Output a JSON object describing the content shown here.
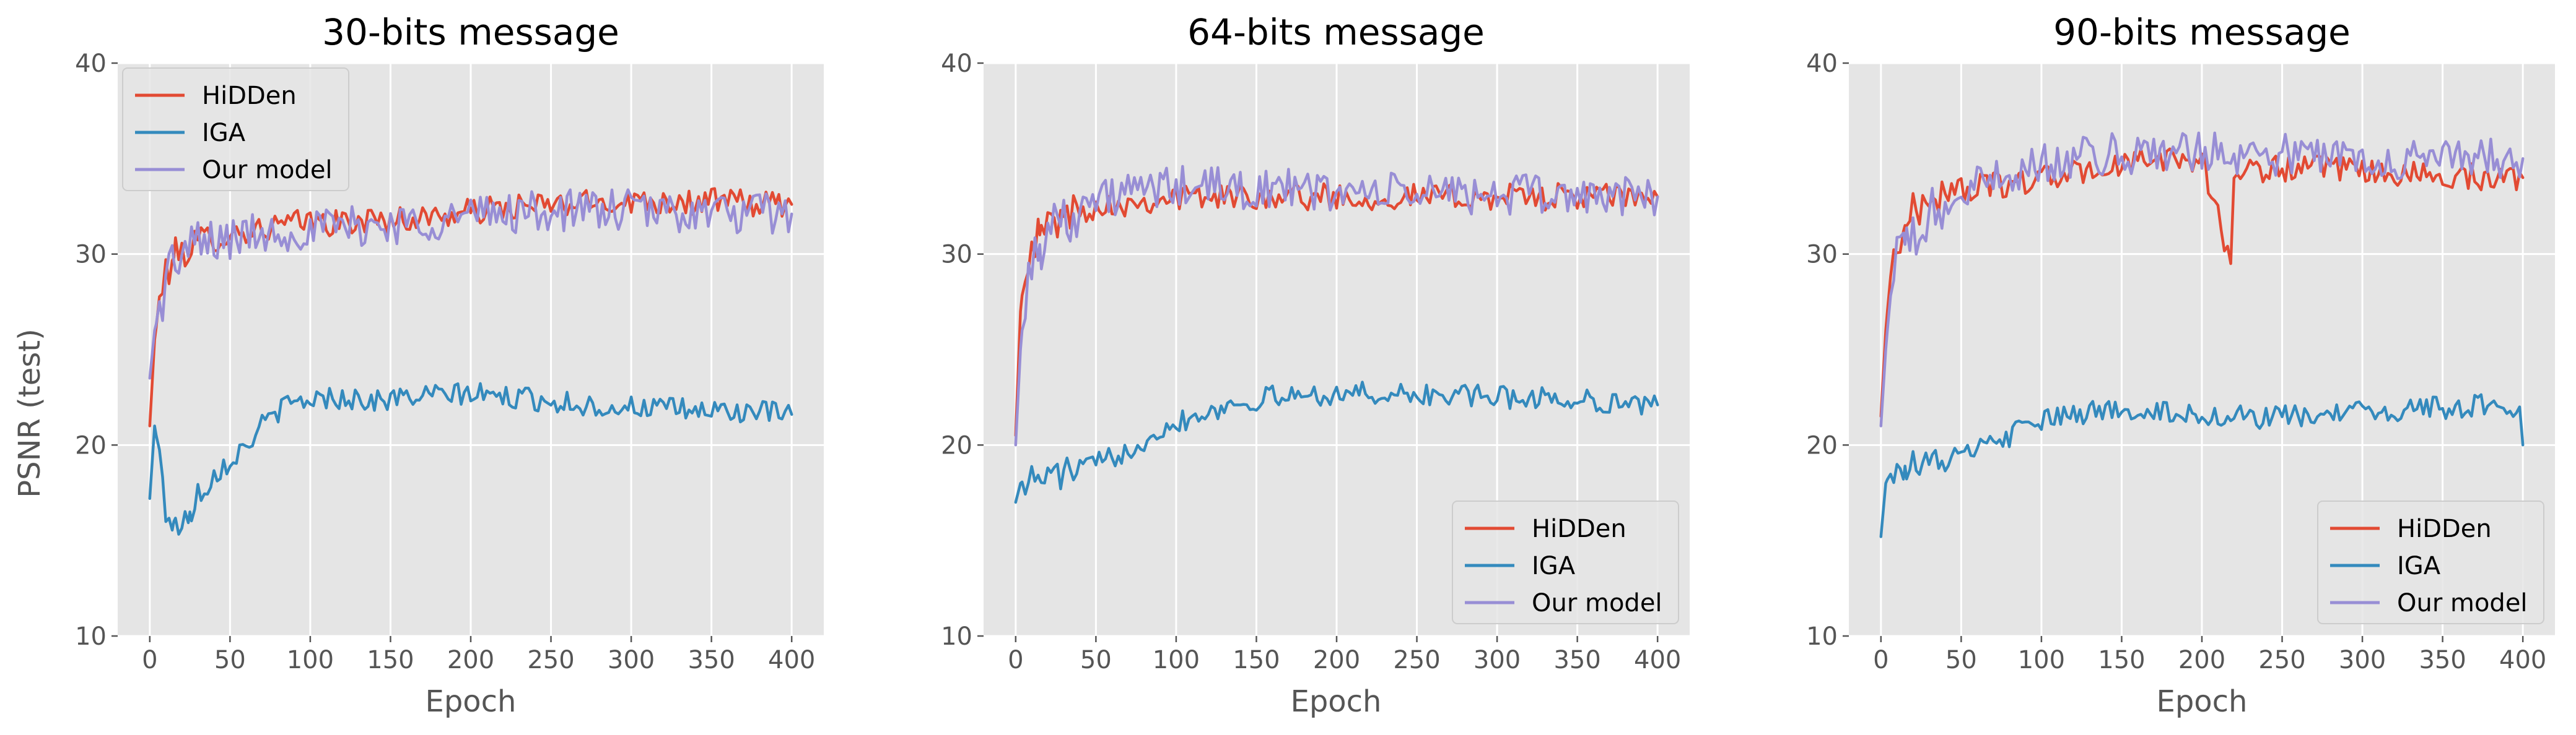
{
  "figure": {
    "ylabel": "PSNR (test)",
    "xlabel": "Epoch",
    "xticks": [
      0,
      50,
      100,
      150,
      200,
      250,
      300,
      350,
      400
    ],
    "yticks": [
      10,
      20,
      30,
      40
    ],
    "xlim": [
      -20,
      420
    ],
    "ylim": [
      10,
      40
    ],
    "grid": true,
    "style": "ggplot",
    "colors": {
      "HiDDen": "#E24A33",
      "IGA": "#348ABD",
      "Our model": "#988ED5"
    }
  },
  "chart_data": [
    {
      "type": "line",
      "title": "30-bits message",
      "xlabel": "Epoch",
      "ylabel": "PSNR (test)",
      "xlim": [
        0,
        400
      ],
      "ylim": [
        10,
        40
      ],
      "legend": "upper-left",
      "series": [
        {
          "name": "HiDDen",
          "color": "#E24A33",
          "x": [
            0,
            3,
            6,
            10,
            15,
            20,
            30,
            40,
            50,
            60,
            70,
            80,
            90,
            100,
            120,
            140,
            160,
            180,
            200,
            220,
            240,
            260,
            280,
            300,
            320,
            340,
            360,
            380,
            400
          ],
          "y": [
            21.0,
            25.5,
            27.5,
            29.0,
            29.8,
            30.2,
            30.5,
            30.8,
            31.0,
            31.2,
            31.3,
            31.5,
            31.6,
            31.7,
            31.6,
            31.8,
            31.8,
            32.0,
            32.2,
            32.4,
            32.5,
            32.6,
            32.7,
            32.8,
            32.8,
            32.7,
            32.8,
            32.6,
            32.6
          ]
        },
        {
          "name": "IGA",
          "color": "#348ABD",
          "x": [
            0,
            3,
            6,
            10,
            15,
            20,
            25,
            30,
            40,
            50,
            60,
            70,
            80,
            90,
            100,
            120,
            140,
            160,
            180,
            200,
            220,
            240,
            260,
            280,
            300,
            320,
            340,
            360,
            380,
            400
          ],
          "y": [
            17.2,
            21.0,
            19.5,
            16.5,
            16.0,
            15.5,
            16.5,
            17.5,
            18.5,
            19.2,
            20.0,
            21.0,
            21.8,
            22.2,
            22.4,
            22.5,
            22.3,
            22.5,
            22.6,
            22.7,
            22.5,
            22.4,
            22.2,
            22.0,
            22.0,
            21.9,
            21.8,
            21.8,
            21.7,
            21.6
          ]
        },
        {
          "name": "Our model",
          "color": "#988ED5",
          "x": [
            0,
            3,
            6,
            10,
            15,
            20,
            30,
            40,
            50,
            60,
            70,
            80,
            90,
            100,
            120,
            140,
            160,
            180,
            200,
            220,
            240,
            260,
            280,
            300,
            320,
            340,
            360,
            380,
            400
          ],
          "y": [
            23.5,
            26.0,
            27.0,
            28.8,
            29.6,
            30.0,
            30.4,
            30.6,
            30.8,
            31.0,
            31.1,
            31.2,
            31.2,
            31.3,
            31.4,
            31.5,
            31.6,
            31.8,
            32.0,
            32.2,
            32.2,
            32.3,
            32.3,
            32.3,
            32.2,
            32.2,
            32.1,
            32.1,
            32.1
          ]
        }
      ]
    },
    {
      "type": "line",
      "title": "64-bits message",
      "xlabel": "Epoch",
      "ylabel": "",
      "xlim": [
        0,
        400
      ],
      "ylim": [
        10,
        40
      ],
      "legend": "lower-right",
      "series": [
        {
          "name": "HiDDen",
          "color": "#E24A33",
          "x": [
            0,
            3,
            6,
            10,
            15,
            20,
            30,
            40,
            50,
            60,
            70,
            80,
            100,
            120,
            140,
            160,
            180,
            200,
            220,
            240,
            260,
            280,
            300,
            320,
            340,
            360,
            380,
            400
          ],
          "y": [
            20.5,
            27.0,
            29.5,
            30.5,
            31.0,
            31.5,
            32.0,
            32.3,
            32.5,
            32.6,
            32.7,
            32.8,
            33.0,
            33.0,
            33.0,
            33.1,
            33.0,
            33.0,
            32.9,
            33.0,
            33.0,
            33.0,
            33.0,
            33.0,
            33.0,
            33.0,
            33.0,
            33.0
          ]
        },
        {
          "name": "IGA",
          "color": "#348ABD",
          "x": [
            0,
            3,
            6,
            10,
            15,
            20,
            30,
            40,
            50,
            60,
            70,
            80,
            90,
            100,
            120,
            140,
            160,
            180,
            200,
            220,
            240,
            260,
            280,
            300,
            320,
            340,
            360,
            380,
            400
          ],
          "y": [
            17.0,
            18.0,
            18.2,
            18.2,
            18.2,
            18.4,
            18.5,
            18.8,
            19.0,
            19.3,
            19.8,
            20.3,
            20.8,
            21.2,
            21.8,
            22.2,
            22.5,
            22.6,
            22.7,
            22.7,
            22.6,
            22.6,
            22.6,
            22.5,
            22.5,
            22.4,
            22.3,
            22.2,
            22.1
          ]
        },
        {
          "name": "Our model",
          "color": "#988ED5",
          "x": [
            0,
            3,
            6,
            10,
            15,
            20,
            30,
            40,
            50,
            60,
            70,
            80,
            90,
            100,
            120,
            140,
            160,
            180,
            200,
            220,
            240,
            260,
            280,
            300,
            320,
            340,
            360,
            380,
            400
          ],
          "y": [
            20.0,
            25.0,
            28.0,
            29.5,
            30.5,
            31.2,
            32.0,
            32.5,
            32.8,
            33.0,
            33.2,
            33.3,
            33.4,
            33.5,
            33.5,
            33.4,
            33.4,
            33.3,
            33.3,
            33.2,
            33.2,
            33.2,
            33.2,
            33.1,
            33.1,
            33.1,
            33.1,
            33.0,
            33.0
          ]
        }
      ]
    },
    {
      "type": "line",
      "title": "90-bits message",
      "xlabel": "Epoch",
      "ylabel": "",
      "xlim": [
        0,
        400
      ],
      "ylim": [
        10,
        40
      ],
      "legend": "lower-right",
      "series": [
        {
          "name": "HiDDen",
          "color": "#E24A33",
          "x": [
            0,
            3,
            6,
            10,
            15,
            20,
            30,
            40,
            50,
            60,
            70,
            80,
            90,
            100,
            120,
            140,
            160,
            180,
            200,
            218,
            220,
            240,
            260,
            280,
            300,
            320,
            340,
            360,
            380,
            400
          ],
          "y": [
            21.5,
            26.0,
            29.0,
            30.5,
            31.5,
            32.2,
            32.8,
            33.2,
            33.4,
            33.5,
            33.6,
            33.7,
            33.8,
            34.0,
            34.2,
            34.5,
            34.8,
            35.0,
            35.0,
            29.5,
            34.2,
            34.5,
            34.5,
            34.4,
            34.3,
            34.2,
            34.1,
            34.1,
            34.0,
            34.0
          ]
        },
        {
          "name": "IGA",
          "color": "#348ABD",
          "x": [
            0,
            3,
            6,
            10,
            15,
            20,
            30,
            40,
            50,
            60,
            70,
            80,
            90,
            100,
            120,
            140,
            160,
            180,
            200,
            220,
            240,
            260,
            280,
            300,
            320,
            340,
            360,
            380,
            398,
            400
          ],
          "y": [
            15.2,
            18.0,
            18.6,
            18.8,
            18.9,
            19.0,
            19.0,
            19.2,
            19.4,
            19.7,
            20.1,
            20.5,
            20.9,
            21.2,
            21.6,
            21.8,
            21.9,
            21.7,
            21.6,
            21.5,
            21.4,
            21.5,
            21.6,
            21.7,
            21.8,
            21.9,
            22.0,
            22.1,
            22.0,
            20.0
          ]
        },
        {
          "name": "Our model",
          "color": "#988ED5",
          "x": [
            0,
            3,
            6,
            10,
            15,
            20,
            30,
            40,
            50,
            60,
            70,
            80,
            90,
            100,
            120,
            140,
            160,
            180,
            200,
            220,
            240,
            260,
            280,
            300,
            320,
            340,
            360,
            380,
            400
          ],
          "y": [
            21.0,
            25.0,
            28.0,
            29.5,
            30.5,
            31.0,
            31.8,
            32.5,
            33.0,
            33.5,
            34.0,
            34.3,
            34.5,
            34.7,
            35.0,
            35.2,
            35.3,
            35.4,
            35.4,
            35.3,
            35.2,
            35.2,
            35.1,
            35.1,
            35.0,
            35.0,
            35.0,
            35.0,
            35.0
          ]
        }
      ]
    }
  ]
}
